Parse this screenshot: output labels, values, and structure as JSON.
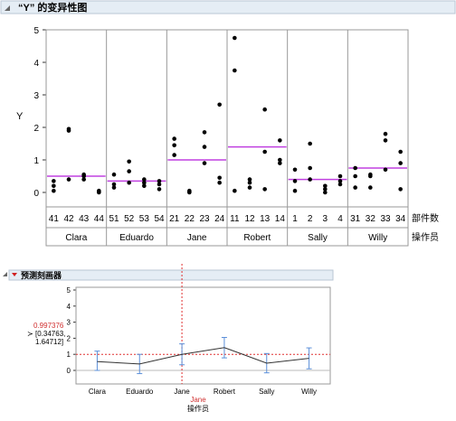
{
  "panel1": {
    "title": "“Y” 的变异性图",
    "ylabel": "Y",
    "row_label_parts": "部件数",
    "row_label_operators": "操作员"
  },
  "panel2": {
    "title": "预测刻画器",
    "xlabel_value": "Jane",
    "xlabel": "操作员",
    "y_value": "0.997376",
    "ci_lines": [
      "[0.34763,",
      "1.64712]"
    ],
    "current_marker": "≻"
  },
  "colors": {
    "mean_line": "#c040e0",
    "ref_line": "#e03030",
    "profile_line": "#333333",
    "error_bar": "#5b8fd9",
    "header_bg": "#e5edf5"
  },
  "chart_data": [
    {
      "type": "scatter",
      "title": "“Y” 的变异性图",
      "ylabel": "Y",
      "ylim": [
        -0.5,
        5
      ],
      "yticks": [
        0,
        1,
        2,
        3,
        4,
        5
      ],
      "groups": [
        {
          "operator": "Clara",
          "mean": 0.5,
          "parts": [
            {
              "part": "41",
              "y": [
                0.05,
                0.2,
                0.35
              ]
            },
            {
              "part": "42",
              "y": [
                0.4,
                1.9,
                1.95
              ]
            },
            {
              "part": "43",
              "y": [
                0.4,
                0.5,
                0.55
              ]
            },
            {
              "part": "44",
              "y": [
                0.0,
                0.02,
                0.05
              ]
            }
          ]
        },
        {
          "operator": "Eduardo",
          "mean": 0.35,
          "parts": [
            {
              "part": "51",
              "y": [
                0.15,
                0.25,
                0.55
              ]
            },
            {
              "part": "52",
              "y": [
                0.3,
                0.65,
                0.95
              ]
            },
            {
              "part": "53",
              "y": [
                0.2,
                0.3,
                0.4
              ]
            },
            {
              "part": "54",
              "y": [
                0.1,
                0.25,
                0.35
              ]
            }
          ]
        },
        {
          "operator": "Jane",
          "mean": 1.0,
          "parts": [
            {
              "part": "21",
              "y": [
                1.15,
                1.45,
                1.65
              ]
            },
            {
              "part": "22",
              "y": [
                0.0,
                0.02,
                0.05
              ]
            },
            {
              "part": "23",
              "y": [
                0.9,
                1.4,
                1.85
              ]
            },
            {
              "part": "24",
              "y": [
                0.3,
                0.45,
                2.7
              ]
            }
          ]
        },
        {
          "operator": "Robert",
          "mean": 1.4,
          "parts": [
            {
              "part": "11",
              "y": [
                0.05,
                3.75,
                4.75
              ]
            },
            {
              "part": "12",
              "y": [
                0.15,
                0.3,
                0.4
              ]
            },
            {
              "part": "13",
              "y": [
                0.1,
                1.25,
                2.55
              ]
            },
            {
              "part": "14",
              "y": [
                0.9,
                1.0,
                1.6
              ]
            }
          ]
        },
        {
          "operator": "Sally",
          "mean": 0.4,
          "parts": [
            {
              "part": "1",
              "y": [
                0.05,
                0.35,
                0.7
              ]
            },
            {
              "part": "2",
              "y": [
                0.4,
                0.75,
                1.5
              ]
            },
            {
              "part": "3",
              "y": [
                0.0,
                0.1,
                0.2
              ]
            },
            {
              "part": "4",
              "y": [
                0.25,
                0.35,
                0.5
              ]
            }
          ]
        },
        {
          "operator": "Willy",
          "mean": 0.75,
          "parts": [
            {
              "part": "31",
              "y": [
                0.15,
                0.5,
                0.75
              ]
            },
            {
              "part": "32",
              "y": [
                0.15,
                0.5,
                0.55
              ]
            },
            {
              "part": "33",
              "y": [
                0.7,
                1.6,
                1.8
              ]
            },
            {
              "part": "34",
              "y": [
                0.1,
                0.9,
                1.25
              ]
            }
          ]
        }
      ]
    },
    {
      "type": "line",
      "title": "预测刻画器",
      "xlabel": "操作员",
      "categories": [
        "Clara",
        "Eduardo",
        "Jane",
        "Robert",
        "Sally",
        "Willy"
      ],
      "values": [
        0.55,
        0.4,
        1.0,
        1.42,
        0.45,
        0.75
      ],
      "ci_lower": [
        0.0,
        -0.2,
        0.35,
        0.78,
        -0.15,
        0.1
      ],
      "ci_upper": [
        1.2,
        1.0,
        1.65,
        2.05,
        1.05,
        1.4
      ],
      "ylim": [
        -0.5,
        5
      ],
      "yticks": [
        0,
        1,
        2,
        3,
        4,
        5
      ],
      "current_category": "Jane",
      "current_value": 0.997376
    }
  ]
}
